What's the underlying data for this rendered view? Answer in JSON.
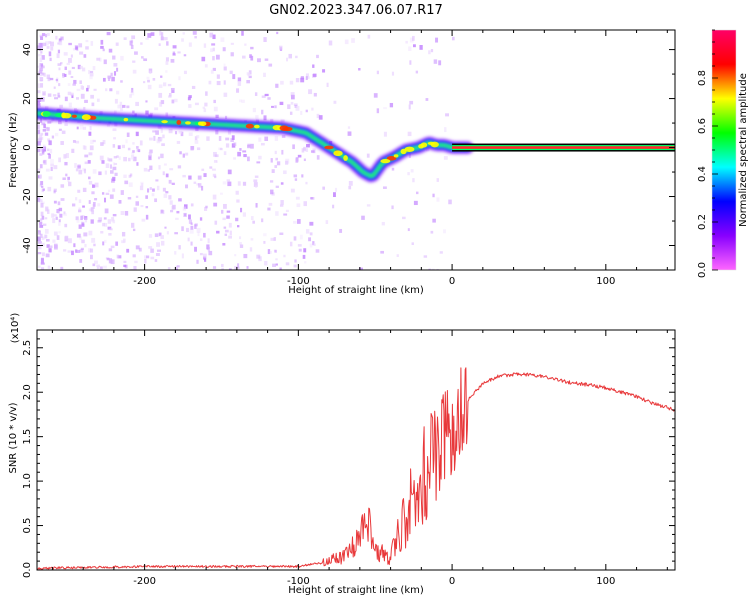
{
  "title": "GN02.2023.347.06.07.R17",
  "chart_data": [
    {
      "type": "heatmap",
      "xlabel": "Height of straight line (km)",
      "ylabel": "Frequency (Hz)",
      "xlim": [
        -270,
        145
      ],
      "ylim": [
        -50,
        48
      ],
      "xticks": [
        -200,
        -100,
        0,
        100
      ],
      "yticks": [
        -40,
        -20,
        0,
        20,
        40
      ],
      "colorbar": {
        "label": "Normalized spectral amplitude",
        "range": [
          0,
          1
        ],
        "ticks": [
          0.0,
          0.2,
          0.4,
          0.6,
          0.8
        ],
        "stops": [
          "#ff66ff",
          "#8800ff",
          "#0000ff",
          "#00ffff",
          "#00ff00",
          "#ffff00",
          "#ff0000",
          "#ff0066"
        ]
      },
      "ridge": {
        "x": [
          -270,
          -250,
          -230,
          -200,
          -170,
          -140,
          -110,
          -95,
          -85,
          -75,
          -65,
          -58,
          -52,
          -45,
          -38,
          -30,
          -22,
          -15,
          -10,
          -5,
          0,
          10
        ],
        "y": [
          14,
          13,
          12,
          11,
          10,
          9,
          8,
          6,
          2,
          -2,
          -6,
          -10,
          -12,
          -6,
          -4,
          -1,
          0,
          2,
          1,
          1,
          0,
          0
        ]
      },
      "constant_line": {
        "x_start": 0,
        "x_end": 145,
        "y": 0
      }
    },
    {
      "type": "line",
      "xlabel": "Height of straight line (km)",
      "ylabel": "SNR (10 * v/v)",
      "y_multiplier": "(x10⁴)",
      "xlim": [
        -270,
        145
      ],
      "ylim": [
        0,
        2.7
      ],
      "xticks": [
        -200,
        -100,
        0,
        100
      ],
      "yticks": [
        0.0,
        0.5,
        1.0,
        1.5,
        2.0,
        2.5
      ],
      "series": [
        {
          "color": "#e8383a",
          "x": [
            -270,
            -200,
            -100,
            -85,
            -70,
            -60,
            -55,
            -50,
            -40,
            -30,
            -20,
            -10,
            0,
            10,
            20,
            30,
            40,
            50,
            60,
            70,
            80,
            90,
            100,
            110,
            120,
            130,
            145
          ],
          "y": [
            0.02,
            0.04,
            0.04,
            0.08,
            0.15,
            0.35,
            0.55,
            0.2,
            0.15,
            0.6,
            1.0,
            1.3,
            1.6,
            1.9,
            2.1,
            2.18,
            2.2,
            2.2,
            2.18,
            2.13,
            2.1,
            2.08,
            2.05,
            2.0,
            1.95,
            1.88,
            1.8
          ]
        }
      ]
    }
  ]
}
